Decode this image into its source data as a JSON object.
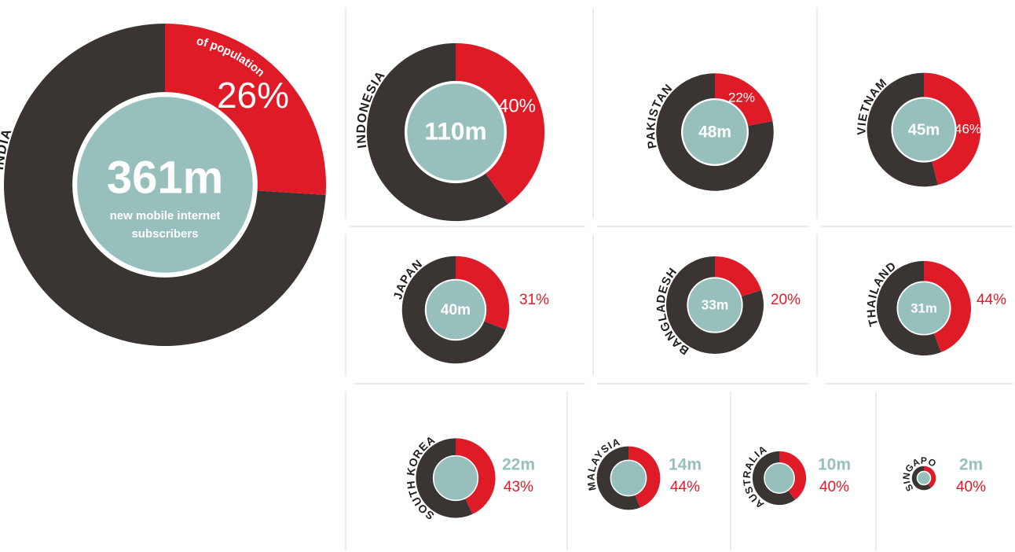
{
  "chart_data": [
    {
      "type": "donut",
      "title": "INDIA",
      "values": [
        26
      ],
      "value_labels": [
        "26%"
      ],
      "subscribers": 361,
      "subscribers_label": "361m",
      "annotations": [
        "of population",
        "new mobile internet",
        "subscribers"
      ]
    },
    {
      "type": "donut",
      "title": "INDONESIA",
      "values": [
        40
      ],
      "value_labels": [
        "40%"
      ],
      "subscribers": 110,
      "subscribers_label": "110m"
    },
    {
      "type": "donut",
      "title": "PAKISTAN",
      "values": [
        22
      ],
      "value_labels": [
        "22%"
      ],
      "subscribers": 48,
      "subscribers_label": "48m"
    },
    {
      "type": "donut",
      "title": "VIETNAM",
      "values": [
        46
      ],
      "value_labels": [
        "46%"
      ],
      "subscribers": 45,
      "subscribers_label": "45m"
    },
    {
      "type": "donut",
      "title": "JAPAN",
      "values": [
        31
      ],
      "value_labels": [
        "31%"
      ],
      "subscribers": 40,
      "subscribers_label": "40m"
    },
    {
      "type": "donut",
      "title": "BANGLADESH",
      "values": [
        20
      ],
      "value_labels": [
        "20%"
      ],
      "subscribers": 33,
      "subscribers_label": "33m"
    },
    {
      "type": "donut",
      "title": "THAILAND",
      "values": [
        44
      ],
      "value_labels": [
        "44%"
      ],
      "subscribers": 31,
      "subscribers_label": "31m"
    },
    {
      "type": "donut",
      "title": "SOUTH KOREA",
      "values": [
        43
      ],
      "value_labels": [
        "43%"
      ],
      "subscribers": 22,
      "subscribers_label": "22m"
    },
    {
      "type": "donut",
      "title": "MALAYSIA",
      "values": [
        44
      ],
      "value_labels": [
        "44%"
      ],
      "subscribers": 14,
      "subscribers_label": "14m"
    },
    {
      "type": "donut",
      "title": "AUSTRALIA",
      "values": [
        40
      ],
      "value_labels": [
        "40%"
      ],
      "subscribers": 10,
      "subscribers_label": "10m"
    },
    {
      "type": "donut",
      "title": "SINGAPORE",
      "values": [
        40
      ],
      "value_labels": [
        "40%"
      ],
      "subscribers": 2,
      "subscribers_label": "2m"
    }
  ]
}
